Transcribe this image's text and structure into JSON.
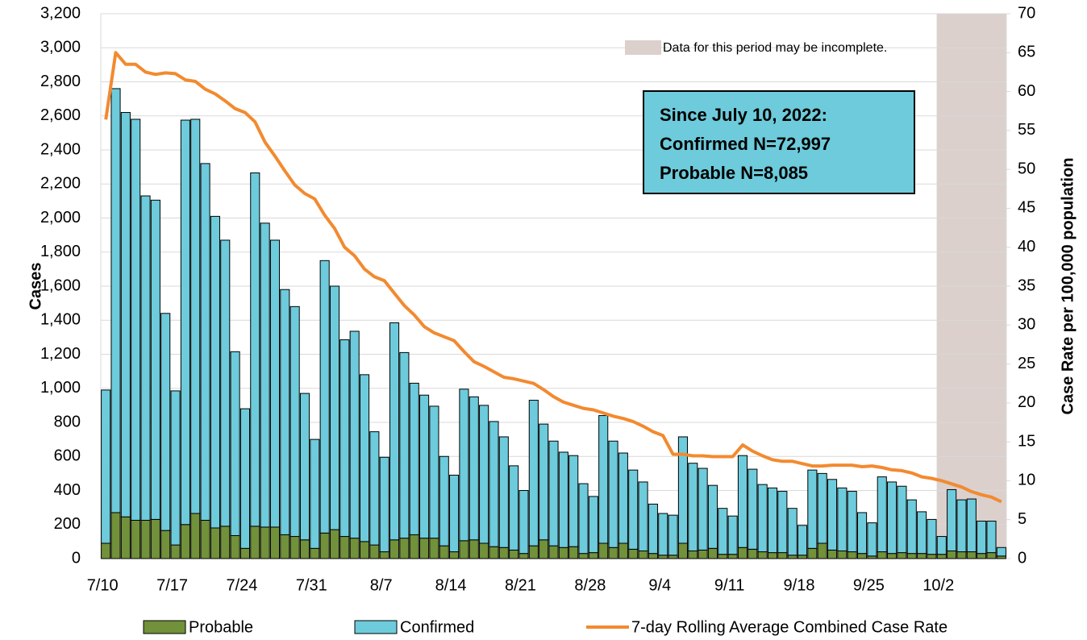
{
  "chart_data": {
    "type": "bar",
    "stacked": true,
    "ylabel": "Cases",
    "y2label": "Case Rate per 100,000 population",
    "categories": [
      "7/10",
      null,
      null,
      null,
      null,
      null,
      null,
      "7/17",
      null,
      null,
      null,
      null,
      null,
      null,
      "7/24",
      null,
      null,
      null,
      null,
      null,
      null,
      "7/31",
      null,
      null,
      null,
      null,
      null,
      null,
      "8/7",
      null,
      null,
      null,
      null,
      null,
      null,
      "8/14",
      null,
      null,
      null,
      null,
      null,
      null,
      "8/21",
      null,
      null,
      null,
      null,
      null,
      null,
      "8/28",
      null,
      null,
      null,
      null,
      null,
      null,
      "9/4",
      null,
      null,
      null,
      null,
      null,
      null,
      "9/11",
      null,
      null,
      null,
      null,
      null,
      null,
      "9/18",
      null,
      null,
      null,
      null,
      null,
      null,
      "9/25",
      null,
      null,
      null,
      null,
      null,
      null,
      "10/2",
      null,
      null,
      null,
      null,
      null,
      null
    ],
    "series": [
      {
        "name": "Probable",
        "color": "#71913a",
        "type": "bar",
        "values": [
          90,
          270,
          245,
          225,
          225,
          230,
          165,
          80,
          200,
          265,
          225,
          180,
          190,
          135,
          60,
          190,
          185,
          185,
          140,
          130,
          110,
          60,
          150,
          170,
          130,
          120,
          100,
          80,
          40,
          110,
          120,
          140,
          120,
          120,
          75,
          40,
          105,
          110,
          90,
          70,
          65,
          50,
          30,
          75,
          110,
          75,
          65,
          70,
          30,
          35,
          90,
          65,
          90,
          55,
          45,
          30,
          20,
          20,
          90,
          45,
          50,
          60,
          25,
          25,
          65,
          55,
          40,
          35,
          35,
          20,
          20,
          60,
          90,
          50,
          45,
          40,
          30,
          15,
          40,
          30,
          35,
          30,
          30,
          25,
          25,
          45,
          40,
          40,
          30,
          35,
          15
        ]
      },
      {
        "name": "Confirmed",
        "color": "#6dcbdb",
        "type": "bar",
        "values": [
          900,
          2490,
          2375,
          2355,
          1905,
          1875,
          1275,
          905,
          2375,
          2315,
          2095,
          1830,
          1680,
          1080,
          820,
          2075,
          1785,
          1685,
          1440,
          1350,
          860,
          640,
          1600,
          1430,
          1155,
          1215,
          980,
          665,
          555,
          1275,
          1090,
          890,
          840,
          775,
          525,
          450,
          890,
          840,
          810,
          735,
          650,
          495,
          370,
          855,
          680,
          615,
          560,
          535,
          410,
          330,
          750,
          625,
          530,
          465,
          405,
          290,
          245,
          235,
          625,
          515,
          480,
          370,
          270,
          225,
          540,
          470,
          395,
          380,
          360,
          275,
          175,
          460,
          410,
          415,
          370,
          355,
          240,
          195,
          440,
          420,
          390,
          315,
          245,
          205,
          105,
          360,
          305,
          310,
          190,
          185,
          50
        ]
      },
      {
        "name": "7-day Rolling Average Combined Case Rate",
        "color": "#f28a30",
        "type": "line",
        "axis": "y2",
        "values": [
          56.4,
          65,
          63.5,
          63.5,
          62.5,
          62.2,
          62.4,
          62.3,
          61.5,
          61.3,
          60.3,
          59.7,
          58.8,
          57.8,
          57.3,
          56.1,
          53.5,
          51.7,
          49.8,
          48.0,
          46.9,
          46.2,
          44.1,
          42.4,
          40.0,
          38.9,
          37.2,
          36.2,
          35.7,
          34.1,
          32.5,
          31.3,
          29.8,
          29.0,
          28.5,
          28.0,
          26.6,
          25.3,
          24.7,
          24.0,
          23.3,
          23.1,
          22.8,
          22.5,
          21.7,
          20.8,
          20.1,
          19.7,
          19.3,
          19.1,
          18.7,
          18.3,
          18.0,
          17.6,
          17.0,
          16.3,
          15.8,
          13.4,
          13.4,
          13.2,
          13.2,
          13.1,
          13.1,
          13.1,
          14.6,
          13.8,
          13.2,
          12.7,
          12.5,
          12.5,
          12.2,
          11.9,
          11.9,
          12.0,
          12.0,
          12.0,
          11.8,
          11.9,
          11.7,
          11.4,
          11.3,
          11.0,
          10.5,
          10.3,
          10.0,
          9.6,
          9.2,
          8.6,
          8.2,
          7.9,
          7.3
        ]
      }
    ],
    "ylim": [
      0,
      3200
    ],
    "yticks": [
      0,
      200,
      400,
      600,
      800,
      {
        "value": 1000,
        "label": "1,000"
      },
      {
        "value": 1200,
        "label": "1,200"
      },
      {
        "value": 1400,
        "label": "1,400"
      },
      {
        "value": 1600,
        "label": "1,600"
      },
      {
        "value": 1800,
        "label": "1,800"
      },
      {
        "value": 2000,
        "label": "2,000"
      },
      {
        "value": 2200,
        "label": "2,200"
      },
      {
        "value": 2400,
        "label": "2,400"
      },
      {
        "value": 2600,
        "label": "2,600"
      },
      {
        "value": 2800,
        "label": "2,800"
      },
      {
        "value": 3000,
        "label": "3,000"
      },
      {
        "value": 3200,
        "label": "3,200"
      }
    ],
    "y2lim": [
      0,
      70
    ],
    "y2ticks": [
      0,
      5,
      10,
      15,
      20,
      25,
      30,
      35,
      40,
      45,
      50,
      55,
      60,
      65,
      70
    ],
    "grid": true,
    "legend": "bottom",
    "incomplete_period": {
      "label": "Data for this period may be incomplete.",
      "start": "10/2",
      "color": "#dbd0cc"
    },
    "annotation_lines": [
      "Since July 10, 2022:",
      "Confirmed N=72,997",
      "Probable N=8,085"
    ],
    "annotation_color": "#6dcbdb"
  }
}
